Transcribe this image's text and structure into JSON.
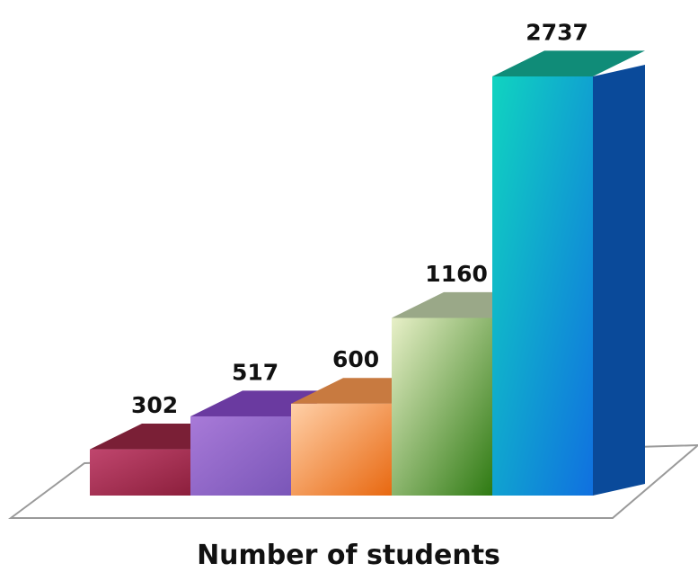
{
  "chart_data": {
    "type": "bar",
    "categories": [
      "",
      "",
      "",
      "",
      ""
    ],
    "values": [
      302,
      517,
      600,
      1160,
      2737
    ],
    "title": "",
    "xlabel": "Number of students",
    "ylabel": "",
    "ylim": [
      0,
      2737
    ],
    "grid": false,
    "legend": "none",
    "bar_colors": [
      {
        "front_top": "#c0466e",
        "front_bottom": "#8c1f3c",
        "top": "#7a1f36",
        "side": "#5e1428"
      },
      {
        "front_top": "#a87ad8",
        "front_bottom": "#7a56b8",
        "top": "#6a3aa0",
        "side": "#4a2a7a"
      },
      {
        "front_top": "#ffd0a8",
        "front_bottom": "#e86810",
        "top": "#c87a40",
        "side": "#a84e10"
      },
      {
        "front_top": "#e8f0c8",
        "front_bottom": "#2e7a12",
        "top": "#9aa888",
        "side": "#1e5a0a"
      },
      {
        "front_top": "#10d4c0",
        "front_bottom": "#1070e0",
        "top": "#108c78",
        "side": "#0a4a9a"
      }
    ],
    "base_fill": "#ffffff",
    "base_stroke": "#9a9a9a"
  }
}
